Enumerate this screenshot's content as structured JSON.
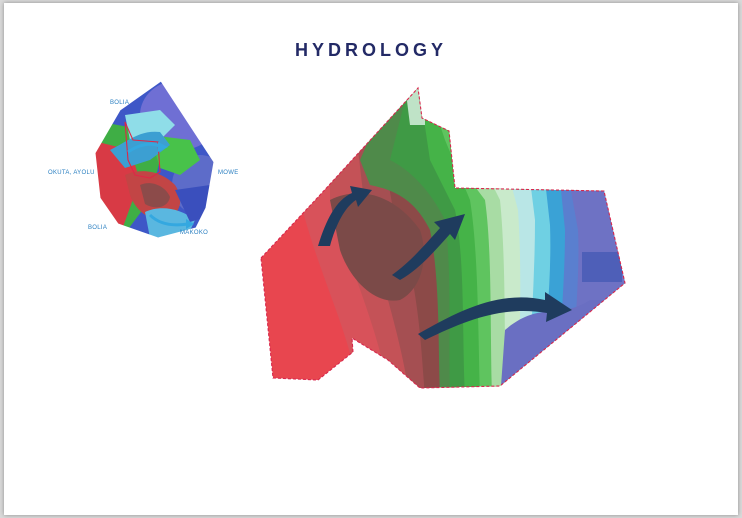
{
  "title": "HYDROLOGY",
  "inset_labels": {
    "top": "BOLIA",
    "left": "OKUTA, AYOLU",
    "right": "MOWE",
    "bottom_left": "BOLIA",
    "bottom": "MAKOKO"
  },
  "colors": {
    "title": "#232a66",
    "high": "#e83c4c",
    "mid": "#8e4a48",
    "green": "#4cbb4a",
    "water": "#6e72c4",
    "boundary": "#d8264c",
    "flow_arrow": "#1f3c5e",
    "label": "#2a7fc1"
  }
}
